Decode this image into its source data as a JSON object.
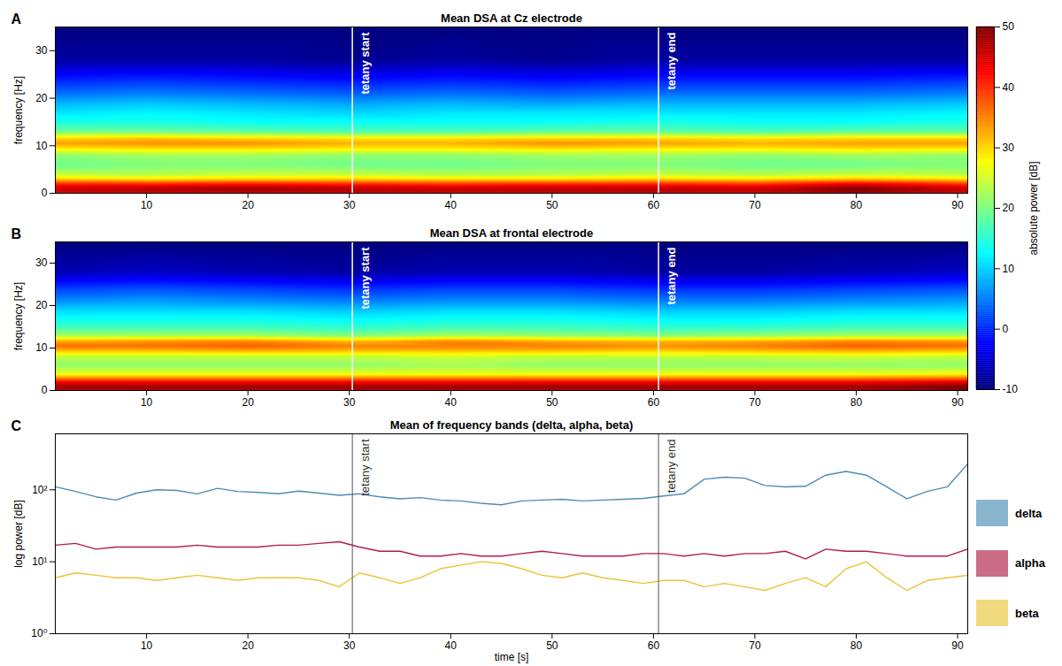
{
  "chart_data": [
    {
      "type": "heatmap",
      "panel": "A",
      "title": "Mean DSA at Cz electrode",
      "ylabel": "frequency [Hz]",
      "xlim": [
        1,
        91
      ],
      "xticks": [
        10,
        20,
        30,
        40,
        50,
        60,
        70,
        80,
        90
      ],
      "ylim": [
        0,
        35
      ],
      "yticks": [
        0,
        10,
        20,
        30
      ],
      "time": [
        1,
        10,
        20,
        30,
        40,
        50,
        60,
        70,
        80,
        91
      ],
      "frequency": [
        0,
        1,
        2,
        3,
        4,
        6,
        8,
        9.5,
        10.5,
        11.5,
        13,
        15,
        17,
        19,
        21,
        24,
        28,
        35
      ],
      "power": [
        [
          44,
          45,
          46,
          45,
          45,
          45,
          45,
          45,
          48,
          45
        ],
        [
          46,
          47,
          48,
          47,
          46,
          47,
          47,
          46,
          50,
          46
        ],
        [
          40,
          40,
          41,
          40,
          39,
          40,
          40,
          39,
          43,
          39
        ],
        [
          30,
          29,
          30,
          30,
          29,
          29,
          30,
          29,
          31,
          29
        ],
        [
          24,
          23,
          24,
          24,
          23,
          23,
          24,
          23,
          24,
          23
        ],
        [
          19,
          20,
          20,
          19,
          19,
          20,
          20,
          19,
          19,
          20
        ],
        [
          21,
          22,
          22,
          21,
          21,
          22,
          22,
          21,
          22,
          21
        ],
        [
          29,
          30,
          30,
          29,
          29,
          30,
          29,
          29,
          30,
          29
        ],
        [
          33,
          34,
          34,
          32,
          32,
          34,
          33,
          32,
          33,
          33
        ],
        [
          30,
          31,
          30,
          29,
          29,
          30,
          30,
          29,
          30,
          30
        ],
        [
          19,
          19,
          18,
          17,
          17,
          18,
          18,
          17,
          18,
          18
        ],
        [
          14,
          14,
          13,
          13,
          13,
          13,
          14,
          13,
          13,
          14
        ],
        [
          11,
          12,
          11,
          10,
          11,
          11,
          11,
          11,
          11,
          12
        ],
        [
          8,
          9,
          8,
          7,
          8,
          7,
          8,
          8,
          8,
          9
        ],
        [
          4,
          5,
          4,
          3,
          4,
          3,
          4,
          4,
          4,
          5
        ],
        [
          -1,
          0,
          -1,
          -2,
          -1,
          -2,
          -1,
          -1,
          -1,
          0
        ],
        [
          -8,
          -8,
          -8,
          -9,
          -8,
          -9,
          -8,
          -8,
          -8,
          -8
        ],
        [
          -10,
          -10,
          -10,
          -10,
          -10,
          -10,
          -10,
          -10,
          -10,
          -10
        ]
      ],
      "colorbar": {
        "label": "absolute power [dB]",
        "range": [
          -10,
          50
        ],
        "ticks": [
          -10,
          0,
          10,
          20,
          30,
          40,
          50
        ]
      },
      "annotations": [
        {
          "x": 30.3,
          "label": "tetany start"
        },
        {
          "x": 60.5,
          "label": "tetany end"
        }
      ]
    },
    {
      "type": "heatmap",
      "panel": "B",
      "title": "Mean DSA at frontal electrode",
      "ylabel": "frequency [Hz]",
      "xlim": [
        1,
        91
      ],
      "xticks": [
        10,
        20,
        30,
        40,
        50,
        60,
        70,
        80,
        90
      ],
      "ylim": [
        0,
        35
      ],
      "yticks": [
        0,
        10,
        20,
        30
      ],
      "time": [
        1,
        10,
        20,
        30,
        40,
        50,
        60,
        70,
        80,
        91
      ],
      "frequency": [
        0,
        1,
        2,
        3,
        4,
        6,
        8,
        9.5,
        10.5,
        11.5,
        13,
        15,
        17,
        19,
        21,
        24,
        28,
        35
      ],
      "power": [
        [
          47,
          47,
          47,
          47,
          47,
          47,
          47,
          47,
          47,
          50
        ],
        [
          48,
          48,
          48,
          48,
          48,
          48,
          48,
          48,
          48,
          50
        ],
        [
          43,
          43,
          43,
          43,
          43,
          43,
          43,
          43,
          43,
          44
        ],
        [
          34,
          34,
          34,
          34,
          34,
          34,
          34,
          34,
          34,
          35
        ],
        [
          26,
          26,
          26,
          26,
          26,
          26,
          26,
          26,
          26,
          27
        ],
        [
          21,
          21,
          21,
          21,
          22,
          21,
          21,
          21,
          21,
          21
        ],
        [
          24,
          24,
          24,
          24,
          25,
          24,
          24,
          24,
          25,
          24
        ],
        [
          32,
          32,
          33,
          32,
          32,
          32,
          31,
          32,
          33,
          32
        ],
        [
          36,
          36,
          37,
          35,
          35,
          35,
          34,
          35,
          37,
          36
        ],
        [
          33,
          34,
          35,
          32,
          35,
          33,
          32,
          33,
          35,
          34
        ],
        [
          22,
          22,
          22,
          20,
          22,
          21,
          20,
          21,
          22,
          22
        ],
        [
          16,
          16,
          16,
          15,
          16,
          16,
          15,
          15,
          16,
          16
        ],
        [
          13,
          13,
          13,
          12,
          13,
          13,
          12,
          12,
          13,
          13
        ],
        [
          10,
          10,
          10,
          9,
          10,
          10,
          9,
          9,
          10,
          10
        ],
        [
          6,
          7,
          6,
          5,
          6,
          6,
          5,
          5,
          6,
          7
        ],
        [
          1,
          2,
          1,
          0,
          1,
          1,
          0,
          0,
          1,
          2
        ],
        [
          -7,
          -6,
          -7,
          -8,
          -7,
          -7,
          -8,
          -8,
          -7,
          -6
        ],
        [
          -10,
          -10,
          -10,
          -10,
          -10,
          -10,
          -10,
          -10,
          -10,
          -10
        ]
      ],
      "colorbar": {
        "label": "absolute power [dB]",
        "range": [
          -10,
          50
        ],
        "ticks": [
          -10,
          0,
          10,
          20,
          30,
          40,
          50
        ]
      },
      "annotations": [
        {
          "x": 30.3,
          "label": "tetany start"
        },
        {
          "x": 60.5,
          "label": "tetany end"
        }
      ]
    },
    {
      "type": "line",
      "panel": "C",
      "title": "Mean of frequency bands (delta, alpha, beta)",
      "xlabel": "time [s]",
      "ylabel": "log power [dB]",
      "log": "y",
      "legend": "right",
      "xlim": [
        1,
        91
      ],
      "xticks": [
        10,
        20,
        30,
        40,
        50,
        60,
        70,
        80,
        90
      ],
      "ylim": [
        1,
        600
      ],
      "yticks": [
        {
          "value": 1,
          "label": "10⁰"
        },
        {
          "value": 10,
          "label": "10¹"
        },
        {
          "value": 100,
          "label": "10²"
        }
      ],
      "x": [
        1,
        3,
        5,
        7,
        9,
        11,
        13,
        15,
        17,
        19,
        21,
        23,
        25,
        27,
        29,
        31,
        33,
        35,
        37,
        39,
        41,
        43,
        45,
        47,
        49,
        51,
        53,
        55,
        57,
        59,
        61,
        63,
        65,
        67,
        69,
        71,
        73,
        75,
        77,
        79,
        81,
        83,
        85,
        87,
        89,
        91
      ],
      "series": [
        {
          "name": "delta",
          "color": "#4c8db5",
          "values": [
            110,
            95,
            80,
            72,
            90,
            100,
            98,
            88,
            105,
            95,
            92,
            88,
            96,
            90,
            84,
            88,
            80,
            75,
            78,
            72,
            70,
            65,
            62,
            70,
            72,
            74,
            70,
            72,
            74,
            76,
            82,
            88,
            140,
            150,
            145,
            115,
            110,
            112,
            160,
            180,
            160,
            110,
            75,
            95,
            110,
            230
          ]
        },
        {
          "name": "alpha",
          "color": "#b01e46",
          "values": [
            17,
            18,
            15,
            16,
            16,
            16,
            16,
            17,
            16,
            16,
            16,
            17,
            17,
            18,
            19,
            16,
            14,
            14,
            12,
            12,
            13,
            12,
            12,
            13,
            14,
            13,
            12,
            12,
            12,
            13,
            13,
            12,
            13,
            12,
            13,
            13,
            14,
            11,
            15,
            14,
            14,
            13,
            12,
            12,
            12,
            15
          ]
        },
        {
          "name": "beta",
          "color": "#e8c53a",
          "values": [
            6,
            7,
            6.5,
            6,
            6,
            5.5,
            6,
            6.5,
            6,
            5.5,
            6,
            6,
            6,
            5.5,
            4.5,
            7,
            6,
            5,
            6,
            8,
            9,
            10,
            9.5,
            8,
            6.5,
            6,
            7,
            6,
            5.5,
            5,
            5.5,
            5.5,
            4.5,
            5,
            4.5,
            4,
            5,
            6,
            4.5,
            8,
            10,
            6,
            4,
            5.5,
            6,
            6.5
          ]
        }
      ],
      "annotations": [
        {
          "x": 30.3,
          "label": "tetany start"
        },
        {
          "x": 60.5,
          "label": "tetany end"
        }
      ]
    }
  ]
}
